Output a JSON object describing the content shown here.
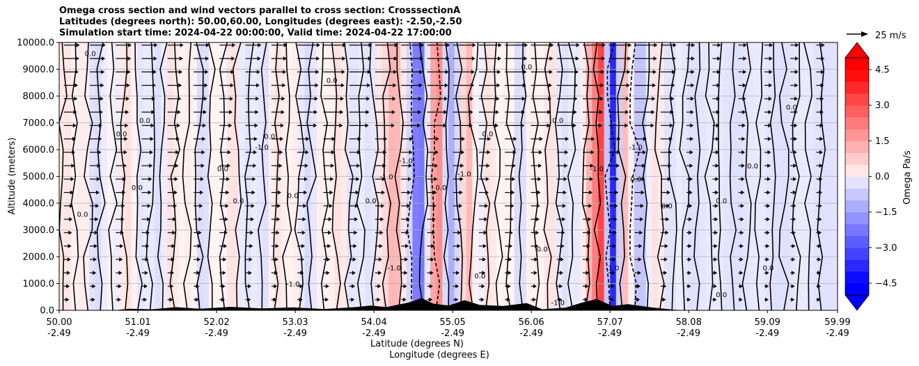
{
  "chart_data": {
    "type": "heatmap",
    "title_lines": [
      "Omega cross section and wind vectors parallel to cross section: CrosssectionA",
      "Latitudes (degrees north): 50.00,60.00, Longitudes (degrees east): -2.50,-2.50",
      "Simulation start time: 2024-04-22 00:00:00, Valid time: 2024-04-22 17:00:00"
    ],
    "ylabel": "Altitude (meters)",
    "xlabel_lines": [
      "Latitude (degrees N)",
      "Longitude (degrees E)"
    ],
    "ylim": [
      0,
      10000
    ],
    "y_ticks": [
      {
        "value": 0,
        "label": "0.0"
      },
      {
        "value": 1000,
        "label": "1000.0"
      },
      {
        "value": 2000,
        "label": "2000.0"
      },
      {
        "value": 3000,
        "label": "3000.0"
      },
      {
        "value": 4000,
        "label": "4000.0"
      },
      {
        "value": 5000,
        "label": "5000.0"
      },
      {
        "value": 6000,
        "label": "6000.0"
      },
      {
        "value": 7000,
        "label": "7000.0"
      },
      {
        "value": 8000,
        "label": "8000.0"
      },
      {
        "value": 9000,
        "label": "9000.0"
      },
      {
        "value": 10000,
        "label": "10000.0"
      }
    ],
    "xlim": [
      50.0,
      59.99
    ],
    "x_ticks": [
      {
        "value": 50.0,
        "lat": "50.00",
        "lon": "-2.49"
      },
      {
        "value": 51.01,
        "lat": "51.01",
        "lon": "-2.49"
      },
      {
        "value": 52.02,
        "lat": "52.02",
        "lon": "-2.49"
      },
      {
        "value": 53.03,
        "lat": "53.03",
        "lon": "-2.49"
      },
      {
        "value": 54.04,
        "lat": "54.04",
        "lon": "-2.49"
      },
      {
        "value": 55.05,
        "lat": "55.05",
        "lon": "-2.49"
      },
      {
        "value": 56.06,
        "lat": "56.06",
        "lon": "-2.49"
      },
      {
        "value": 57.07,
        "lat": "57.07",
        "lon": "-2.49"
      },
      {
        "value": 58.08,
        "lat": "58.08",
        "lon": "-2.49"
      },
      {
        "value": 59.09,
        "lat": "59.09",
        "lon": "-2.49"
      },
      {
        "value": 59.99,
        "lat": "59.99",
        "lon": "-2.49"
      }
    ],
    "colorbar": {
      "label": "Omega Pa/s",
      "range": [
        -5,
        5
      ],
      "ticks": [
        {
          "value": 4.5,
          "label": "4.5"
        },
        {
          "value": 3.0,
          "label": "3.0"
        },
        {
          "value": 1.5,
          "label": "1.5"
        },
        {
          "value": 0.0,
          "label": "0.0"
        },
        {
          "value": -1.5,
          "label": "−1.5"
        },
        {
          "value": -3.0,
          "label": "−3.0"
        },
        {
          "value": -4.5,
          "label": "−4.5"
        }
      ],
      "levels": 20,
      "extend": "both"
    },
    "colors": {
      "positive": "#ff0000",
      "negative": "#0000ff",
      "terrain": "#000000",
      "grid": "#b0b0b0"
    },
    "quiver_key": {
      "label": "25 m/s",
      "speed": 25
    },
    "contour_labels": [
      {
        "lat": 50.4,
        "alt": 9500,
        "text": "0.0"
      },
      {
        "lat": 50.3,
        "alt": 3500,
        "text": "0.0"
      },
      {
        "lat": 50.8,
        "alt": 6500,
        "text": "0.0"
      },
      {
        "lat": 51.0,
        "alt": 4500,
        "text": "0.0"
      },
      {
        "lat": 51.1,
        "alt": 7000,
        "text": "0.0"
      },
      {
        "lat": 52.1,
        "alt": 5200,
        "text": "0.0"
      },
      {
        "lat": 52.3,
        "alt": 4000,
        "text": "0.0"
      },
      {
        "lat": 52.6,
        "alt": 6000,
        "text": "-1.0"
      },
      {
        "lat": 52.7,
        "alt": 6400,
        "text": "0.0"
      },
      {
        "lat": 53.0,
        "alt": 4200,
        "text": "0.0"
      },
      {
        "lat": 53.5,
        "alt": 8500,
        "text": "0.0"
      },
      {
        "lat": 54.0,
        "alt": 4000,
        "text": "0.0"
      },
      {
        "lat": 54.2,
        "alt": 4900,
        "text": "-1.0"
      },
      {
        "lat": 54.45,
        "alt": 5500,
        "text": "-1.0"
      },
      {
        "lat": 54.9,
        "alt": 4500,
        "text": "0.0"
      },
      {
        "lat": 55.2,
        "alt": 5000,
        "text": "-1.0"
      },
      {
        "lat": 55.5,
        "alt": 6500,
        "text": "0.0"
      },
      {
        "lat": 56.0,
        "alt": 9000,
        "text": "0.0"
      },
      {
        "lat": 56.2,
        "alt": 2200,
        "text": "0.0"
      },
      {
        "lat": 56.4,
        "alt": 7000,
        "text": "0.0"
      },
      {
        "lat": 56.9,
        "alt": 5200,
        "text": "-1.0"
      },
      {
        "lat": 57.4,
        "alt": 6000,
        "text": "-1.0"
      },
      {
        "lat": 57.4,
        "alt": 4800,
        "text": "0.0"
      },
      {
        "lat": 57.8,
        "alt": 3800,
        "text": "0.0"
      },
      {
        "lat": 58.5,
        "alt": 4000,
        "text": "0.0"
      },
      {
        "lat": 58.9,
        "alt": 5300,
        "text": "0.0"
      },
      {
        "lat": 59.4,
        "alt": 7500,
        "text": "0.0"
      },
      {
        "lat": 59.1,
        "alt": 1500,
        "text": "0.0"
      },
      {
        "lat": 56.4,
        "alt": 200,
        "text": "-1.0"
      },
      {
        "lat": 58.5,
        "alt": 500,
        "text": "0.0"
      },
      {
        "lat": 53.0,
        "alt": 900,
        "text": "-1.0"
      },
      {
        "lat": 54.3,
        "alt": 1500,
        "text": "-1.0"
      },
      {
        "lat": 55.4,
        "alt": 1200,
        "text": "0.0"
      },
      {
        "lat": 57.1,
        "alt": 1500,
        "text": "-1.0"
      }
    ]
  }
}
